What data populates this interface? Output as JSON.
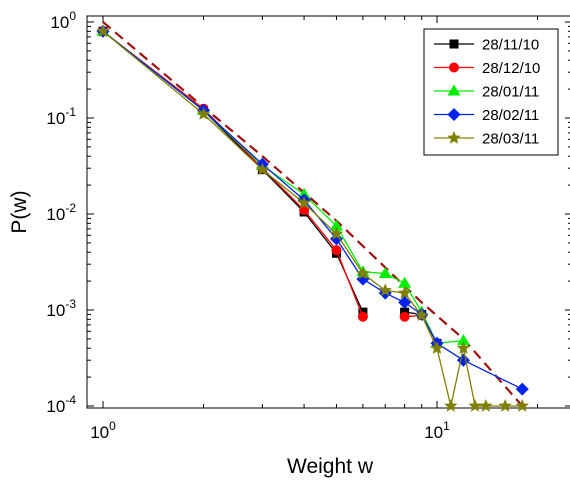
{
  "chart_data": {
    "type": "scatter",
    "xlabel": "Weight w",
    "ylabel": "P(w)",
    "xscale": "log",
    "yscale": "log",
    "xlim": [
      0.8,
      25
    ],
    "ylim": [
      8e-05,
      1.2
    ],
    "x_ticks": [
      {
        "value": 1,
        "base": "10",
        "exp": "0"
      },
      {
        "value": 10,
        "base": "10",
        "exp": "1"
      }
    ],
    "y_ticks": [
      {
        "value": 1,
        "base": "10",
        "exp": "0"
      },
      {
        "value": 0.1,
        "base": "10",
        "exp": "-1"
      },
      {
        "value": 0.01,
        "base": "10",
        "exp": "-2"
      },
      {
        "value": 0.001,
        "base": "10",
        "exp": "-3"
      },
      {
        "value": 0.0001,
        "base": "10",
        "exp": "-4"
      }
    ],
    "legend_position": "top-right",
    "grid": false,
    "fit_line": {
      "style": "dashed",
      "color": "#a01010",
      "points": [
        [
          1,
          1.0
        ],
        [
          2,
          0.13
        ],
        [
          3,
          0.04
        ],
        [
          5,
          0.0085
        ],
        [
          9,
          0.0012
        ],
        [
          12,
          0.0005
        ],
        [
          18,
          0.0001
        ]
      ]
    },
    "series": [
      {
        "name": "28/11/10",
        "color": "#000000",
        "marker": "square",
        "x": [
          1,
          2,
          3,
          4,
          5,
          6,
          7,
          8,
          9,
          10
        ],
        "y": [
          0.8,
          0.12,
          0.029,
          0.0105,
          0.0039,
          0.00095,
          null,
          0.00095,
          0.0009,
          0.00045
        ]
      },
      {
        "name": "28/12/10",
        "color": "#ff0000",
        "marker": "circle",
        "x": [
          1,
          2,
          3,
          4,
          5,
          6,
          7,
          8,
          9,
          10
        ],
        "y": [
          0.8,
          0.125,
          0.03,
          0.011,
          0.0042,
          0.00085,
          null,
          0.00085,
          0.00088,
          0.00045
        ]
      },
      {
        "name": "28/01/11",
        "color": "#00ee00",
        "marker": "triangle",
        "x": [
          1,
          2,
          3,
          4,
          5,
          6,
          7,
          8,
          9,
          10,
          12
        ],
        "y": [
          0.8,
          0.12,
          0.032,
          0.016,
          0.0075,
          0.0025,
          0.0024,
          0.0019,
          0.00095,
          0.00045,
          0.00048
        ]
      },
      {
        "name": "28/02/11",
        "color": "#0022ee",
        "marker": "diamond",
        "x": [
          1,
          2,
          3,
          4,
          5,
          6,
          7,
          8,
          9,
          10,
          12,
          18
        ],
        "y": [
          0.8,
          0.12,
          0.033,
          0.014,
          0.0055,
          0.0021,
          0.0015,
          0.0012,
          0.0009,
          0.00045,
          0.0003,
          0.00015
        ]
      },
      {
        "name": "28/03/11",
        "color": "#808000",
        "marker": "star",
        "x": [
          1,
          2,
          3,
          4,
          5,
          6,
          7,
          8,
          9,
          10,
          11,
          12,
          13,
          14,
          16,
          18
        ],
        "y": [
          0.8,
          0.11,
          0.029,
          0.013,
          0.0062,
          0.0024,
          0.0016,
          0.0015,
          0.00088,
          0.0004,
          0.0001,
          0.0004,
          0.0001,
          0.0001,
          0.0001,
          0.0001
        ]
      }
    ]
  }
}
